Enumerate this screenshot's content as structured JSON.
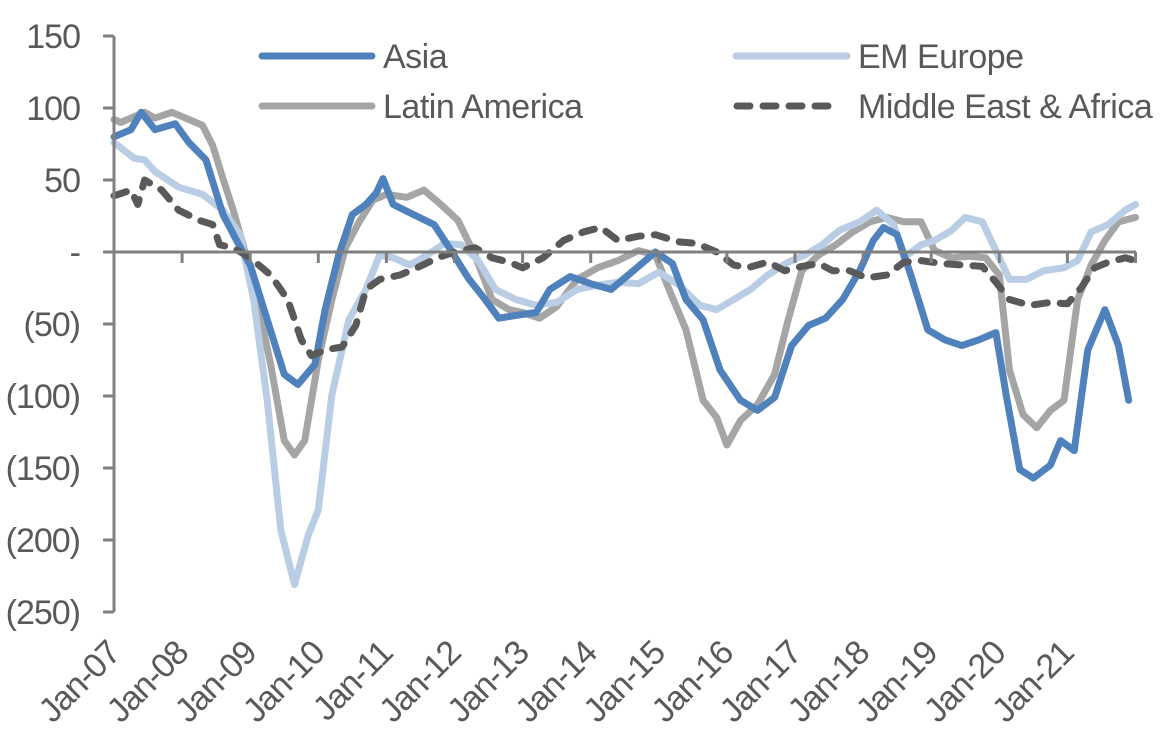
{
  "chart_data": {
    "type": "line",
    "title": "",
    "xlabel": "",
    "ylabel": "",
    "ylim": [
      -250,
      150
    ],
    "xlim": [
      "Jan-07",
      "Jan-22"
    ],
    "x_unit": "decimal year",
    "yticks": [
      150,
      100,
      50,
      0,
      -50,
      -100,
      -150,
      -200,
      -250
    ],
    "ytick_labels": [
      "150",
      "100",
      "50",
      "-",
      "(50)",
      "(100)",
      "(150)",
      "(200)",
      "(250)"
    ],
    "xtick_labels": [
      "Jan-07",
      "Jan-08",
      "Jan-09",
      "Jan-10",
      "Jan-11",
      "Jan-12",
      "Jan-13",
      "Jan-14",
      "Jan-15",
      "Jan-16",
      "Jan-17",
      "Jan-18",
      "Jan-19",
      "Jan-20",
      "Jan-21"
    ],
    "grid": false,
    "legend_position": "top",
    "series": [
      {
        "name": "Asia",
        "color": "#4f81bd",
        "dash": "solid",
        "x": [
          2007.0,
          2007.25,
          2007.4,
          2007.6,
          2007.9,
          2008.1,
          2008.35,
          2008.6,
          2008.8,
          2009.0,
          2009.25,
          2009.5,
          2009.7,
          2009.95,
          2010.1,
          2010.3,
          2010.5,
          2010.7,
          2010.85,
          2010.95,
          2011.1,
          2011.4,
          2011.7,
          2011.95,
          2012.2,
          2012.45,
          2012.65,
          2012.9,
          2013.2,
          2013.4,
          2013.7,
          2014.0,
          2014.3,
          2014.6,
          2014.95,
          2015.2,
          2015.4,
          2015.65,
          2015.9,
          2016.2,
          2016.45,
          2016.7,
          2016.95,
          2017.2,
          2017.45,
          2017.7,
          2017.95,
          2018.15,
          2018.3,
          2018.5,
          2018.7,
          2018.95,
          2019.2,
          2019.45,
          2019.7,
          2019.95,
          2020.1,
          2020.3,
          2020.5,
          2020.75,
          2020.9,
          2021.1,
          2021.3,
          2021.55,
          2021.75,
          2021.9
        ],
        "values": [
          80,
          85,
          97,
          85,
          89,
          76,
          64,
          26,
          8,
          -9,
          -47,
          -85,
          -92,
          -78,
          -40,
          -2,
          26,
          33,
          41,
          51,
          33,
          26,
          19,
          1,
          -18,
          -33,
          -46,
          -44,
          -42,
          -26,
          -17,
          -22,
          -26,
          -14,
          0,
          -8,
          -33,
          -47,
          -82,
          -103,
          -110,
          -101,
          -65,
          -51,
          -46,
          -33,
          -13,
          8,
          17,
          12,
          -16,
          -54,
          -61,
          -65,
          -61,
          -56,
          -99,
          -151,
          -157,
          -148,
          -131,
          -138,
          -68,
          -40,
          -65,
          -103
        ]
      },
      {
        "name": "EM Europe",
        "color": "#b9cde5",
        "dash": "solid",
        "x": [
          2007.0,
          2007.3,
          2007.45,
          2007.6,
          2007.95,
          2008.3,
          2008.6,
          2008.85,
          2009.05,
          2009.25,
          2009.45,
          2009.65,
          2009.85,
          2010.0,
          2010.2,
          2010.45,
          2010.7,
          2010.9,
          2011.1,
          2011.35,
          2011.6,
          2011.85,
          2012.1,
          2012.35,
          2012.6,
          2012.9,
          2013.2,
          2013.5,
          2013.8,
          2014.1,
          2014.4,
          2014.7,
          2015.0,
          2015.3,
          2015.6,
          2015.85,
          2016.1,
          2016.35,
          2016.6,
          2016.9,
          2017.15,
          2017.4,
          2017.65,
          2017.95,
          2018.2,
          2018.45,
          2018.6,
          2018.85,
          2019.05,
          2019.3,
          2019.5,
          2019.75,
          2019.95,
          2020.15,
          2020.4,
          2020.65,
          2020.95,
          2021.15,
          2021.35,
          2021.6,
          2021.85,
          2022.0
        ],
        "values": [
          76,
          65,
          64,
          56,
          45,
          40,
          29,
          12,
          -33,
          -103,
          -193,
          -231,
          -197,
          -179,
          -99,
          -47,
          -26,
          -2,
          -4,
          -9,
          -2,
          6,
          5,
          -6,
          -26,
          -33,
          -37,
          -35,
          -26,
          -23,
          -21,
          -22,
          -14,
          -23,
          -37,
          -40,
          -33,
          -26,
          -16,
          -7,
          -2,
          5,
          15,
          21,
          29,
          19,
          -4,
          5,
          8,
          15,
          24,
          21,
          1,
          -19,
          -19,
          -13,
          -11,
          -6,
          14,
          19,
          29,
          33
        ]
      },
      {
        "name": "Latin America",
        "color": "#a5a5a5",
        "dash": "solid",
        "x": [
          2007.0,
          2007.1,
          2007.3,
          2007.45,
          2007.6,
          2007.85,
          2008.1,
          2008.3,
          2008.45,
          2008.6,
          2008.75,
          2008.95,
          2009.1,
          2009.3,
          2009.5,
          2009.65,
          2009.8,
          2010.0,
          2010.2,
          2010.4,
          2010.6,
          2010.8,
          2011.0,
          2011.3,
          2011.55,
          2011.8,
          2012.05,
          2012.3,
          2012.55,
          2012.8,
          2013.0,
          2013.25,
          2013.5,
          2013.8,
          2014.1,
          2014.4,
          2014.7,
          2014.95,
          2015.15,
          2015.4,
          2015.65,
          2015.85,
          2016.0,
          2016.2,
          2016.45,
          2016.7,
          2016.9,
          2017.1,
          2017.35,
          2017.6,
          2017.85,
          2018.1,
          2018.35,
          2018.6,
          2018.85,
          2019.05,
          2019.3,
          2019.55,
          2019.8,
          2020.0,
          2020.15,
          2020.35,
          2020.55,
          2020.75,
          2020.95,
          2021.15,
          2021.35,
          2021.55,
          2021.75,
          2022.0
        ],
        "values": [
          92,
          90,
          94,
          97,
          93,
          97,
          92,
          88,
          74,
          51,
          29,
          -4,
          -33,
          -78,
          -131,
          -141,
          -131,
          -75,
          -33,
          3,
          21,
          36,
          40,
          38,
          43,
          33,
          22,
          -2,
          -33,
          -40,
          -42,
          -46,
          -38,
          -19,
          -11,
          -6,
          1,
          -2,
          -26,
          -54,
          -103,
          -115,
          -134,
          -117,
          -106,
          -85,
          -47,
          -13,
          -2,
          5,
          14,
          21,
          24,
          21,
          21,
          1,
          -4,
          -3,
          -4,
          -16,
          -82,
          -113,
          -122,
          -110,
          -103,
          -33,
          -9,
          8,
          21,
          24
        ]
      },
      {
        "name": "Middle East & Africa",
        "color": "#595959",
        "dash": "dashed",
        "x": [
          2007.0,
          2007.25,
          2007.35,
          2007.45,
          2007.7,
          2007.95,
          2008.25,
          2008.45,
          2008.55,
          2008.75,
          2009.0,
          2009.3,
          2009.55,
          2009.75,
          2009.9,
          2010.1,
          2010.35,
          2010.55,
          2010.7,
          2010.9,
          2011.2,
          2011.45,
          2011.75,
          2012.0,
          2012.3,
          2012.55,
          2012.8,
          2013.0,
          2013.3,
          2013.6,
          2013.9,
          2014.15,
          2014.4,
          2014.7,
          2014.95,
          2015.3,
          2015.55,
          2015.85,
          2016.1,
          2016.3,
          2016.6,
          2016.85,
          2017.1,
          2017.35,
          2017.55,
          2017.8,
          2018.05,
          2018.35,
          2018.6,
          2018.85,
          2019.15,
          2019.45,
          2019.75,
          2019.95,
          2020.15,
          2020.45,
          2020.75,
          2021.0,
          2021.2,
          2021.4,
          2021.6,
          2021.85,
          2022.0
        ],
        "values": [
          39,
          43,
          33,
          50,
          43,
          29,
          22,
          19,
          5,
          3,
          -4,
          -16,
          -33,
          -61,
          -72,
          -68,
          -66,
          -51,
          -26,
          -19,
          -16,
          -11,
          -4,
          0,
          3,
          -4,
          -7,
          -11,
          -4,
          8,
          14,
          17,
          8,
          11,
          12,
          7,
          6,
          0,
          -9,
          -11,
          -7,
          -13,
          -10,
          -8,
          -13,
          -13,
          -18,
          -16,
          -7,
          -6,
          -8,
          -9,
          -10,
          -21,
          -33,
          -37,
          -35,
          -36,
          -25,
          -11,
          -7,
          -4,
          -6
        ]
      }
    ]
  }
}
